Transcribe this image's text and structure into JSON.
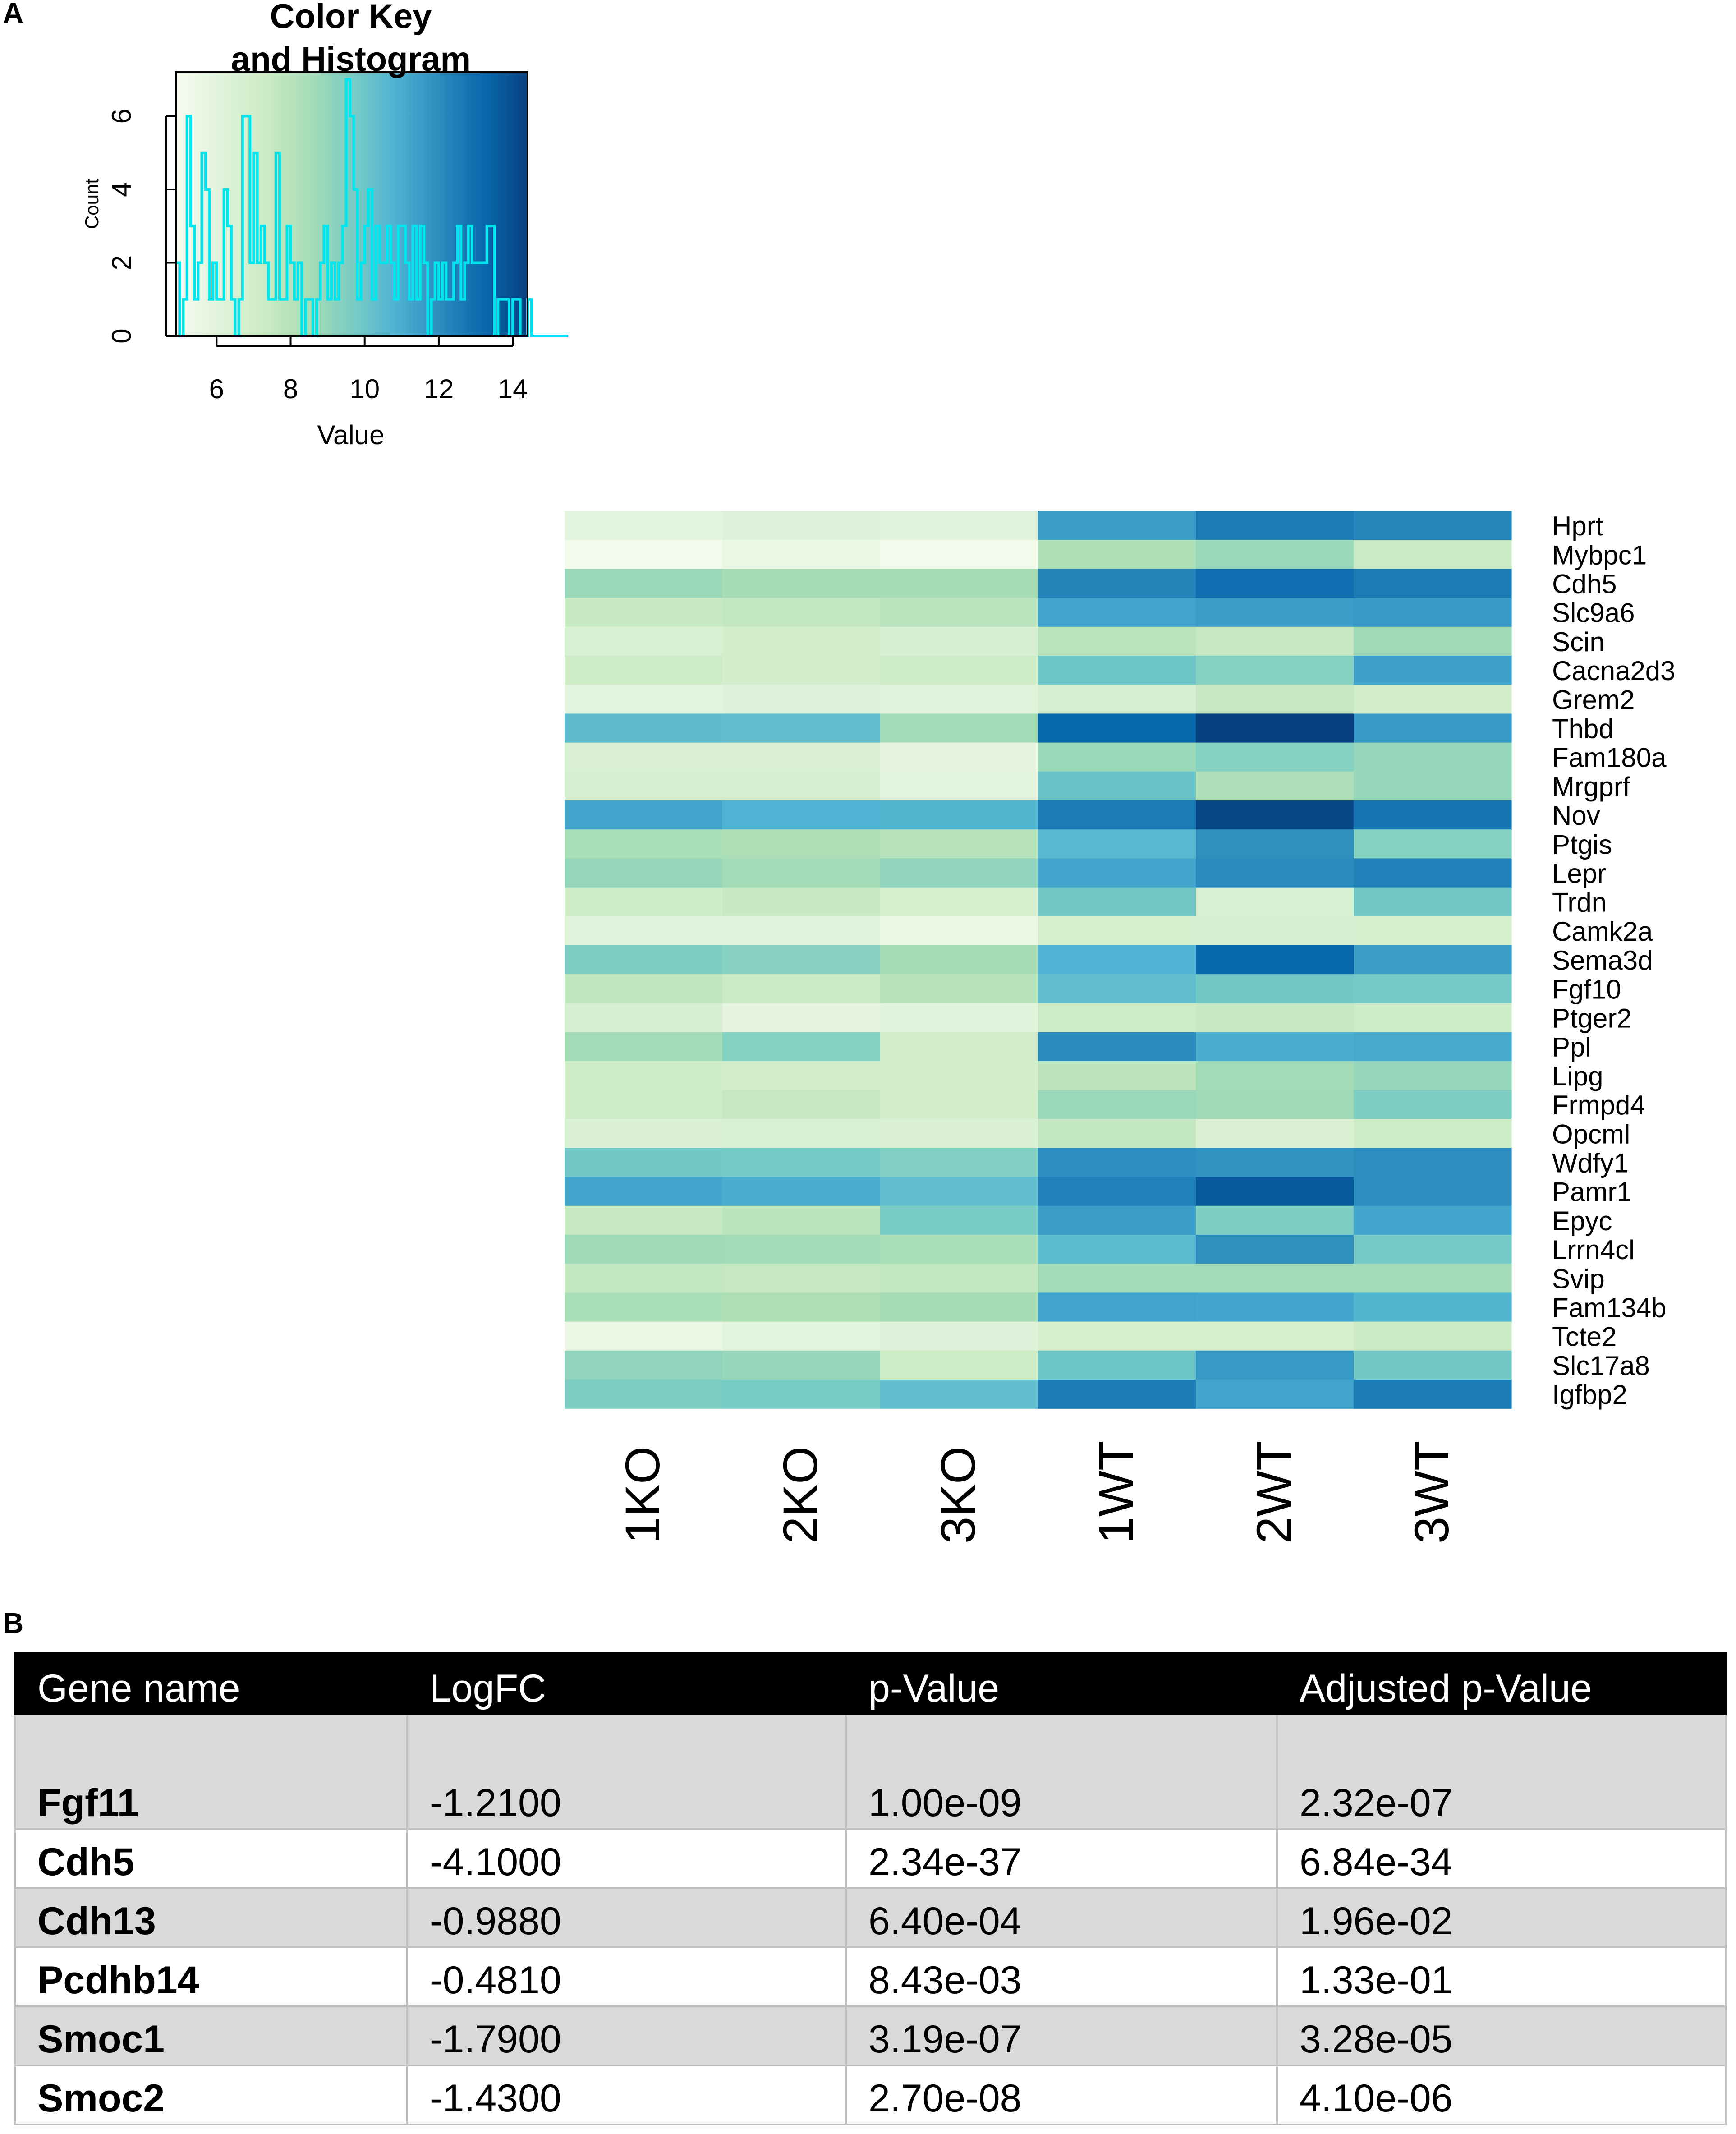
{
  "panels": {
    "a": "A",
    "b": "B"
  },
  "chart_data": [
    {
      "type": "histogram",
      "title": "Color Key\nand Histogram",
      "xlabel": "Value",
      "ylabel": "Count",
      "xlim": [
        4.9,
        14.4
      ],
      "ylim": [
        0,
        7.2
      ],
      "xticks": [
        6,
        8,
        10,
        12,
        14
      ],
      "yticks": [
        0,
        2,
        4,
        6
      ],
      "line_color": "#00e5ee",
      "colors": [
        "#f7fcf0",
        "#e0f3db",
        "#ccebc5",
        "#a8ddb5",
        "#7bccc4",
        "#4eb3d3",
        "#2b8cbe",
        "#0868ac",
        "#084081"
      ],
      "bins": {
        "start": 4.9,
        "width": 0.1,
        "counts": [
          2,
          0,
          1,
          6,
          3,
          1,
          2,
          5,
          4,
          1,
          2,
          1,
          1,
          4,
          3,
          1,
          0,
          1,
          6,
          6,
          2,
          5,
          2,
          3,
          2,
          1,
          1,
          5,
          1,
          1,
          3,
          2,
          1,
          2,
          0,
          1,
          1,
          0,
          1,
          2,
          3,
          1,
          2,
          1,
          2,
          3,
          7,
          6,
          4,
          1,
          2,
          3,
          4,
          1,
          3,
          2,
          2,
          3,
          2,
          1,
          3,
          3,
          2,
          1,
          3,
          1,
          3,
          2,
          0,
          1,
          2,
          1,
          2,
          1,
          1,
          2,
          3,
          1,
          2,
          3,
          2,
          2,
          2,
          2,
          3,
          3,
          0,
          1,
          1,
          1,
          0,
          1,
          1,
          0,
          0,
          1,
          0,
          0,
          0,
          0,
          0,
          0,
          0,
          0,
          0,
          0
        ]
      }
    },
    {
      "type": "heatmap",
      "columns": [
        "1KO",
        "2KO",
        "3KO",
        "1WT",
        "2WT",
        "3WT"
      ],
      "rows": [
        "Hprt",
        "Mybpc1",
        "Cdh5",
        "Slc9a6",
        "Scin",
        "Cacna2d3",
        "Grem2",
        "Thbd",
        "Fam180a",
        "Mrgprf",
        "Nov",
        "Ptgis",
        "Lepr",
        "Trdn",
        "Camk2a",
        "Sema3d",
        "Fgf10",
        "Ptger2",
        "Ppl",
        "Lipg",
        "Frmpd4",
        "Opcml",
        "Wdfy1",
        "Pamr1",
        "Epyc",
        "Lrrn4cl",
        "Svip",
        "Fam134b",
        "Tcte2",
        "Slc17a8",
        "Igfbp2"
      ],
      "scale_range": [
        4.9,
        14.4
      ],
      "values": [
        [
          6.0,
          6.2,
          6.1,
          11.5,
          12.6,
          12.2
        ],
        [
          5.2,
          5.5,
          5.2,
          8.3,
          8.8,
          7.3
        ],
        [
          8.8,
          8.5,
          8.5,
          12.3,
          13.0,
          12.6
        ],
        [
          7.4,
          7.6,
          7.9,
          11.3,
          11.5,
          11.6
        ],
        [
          6.6,
          6.9,
          6.7,
          7.9,
          7.5,
          8.7
        ],
        [
          7.2,
          6.9,
          7.1,
          10.0,
          9.4,
          11.4
        ],
        [
          6.0,
          6.2,
          6.1,
          6.7,
          7.5,
          7.0
        ],
        [
          10.4,
          10.3,
          8.6,
          13.2,
          14.4,
          11.6
        ],
        [
          6.5,
          6.5,
          5.8,
          8.8,
          9.4,
          8.9
        ],
        [
          6.7,
          6.7,
          6.0,
          10.1,
          8.2,
          8.9
        ],
        [
          11.2,
          10.8,
          10.7,
          12.6,
          14.2,
          12.8
        ],
        [
          8.4,
          8.3,
          8.0,
          10.6,
          11.9,
          9.4
        ],
        [
          9.0,
          8.6,
          9.1,
          11.2,
          12.1,
          12.4
        ],
        [
          7.1,
          7.4,
          6.8,
          9.9,
          6.6,
          9.9
        ],
        [
          6.1,
          6.1,
          5.6,
          6.8,
          6.7,
          6.8
        ],
        [
          9.6,
          9.3,
          8.5,
          10.8,
          13.2,
          11.5
        ],
        [
          7.7,
          7.3,
          8.0,
          10.3,
          9.9,
          9.8
        ],
        [
          6.7,
          5.9,
          6.1,
          7.2,
          7.5,
          7.1
        ],
        [
          8.6,
          9.4,
          7.0,
          12.1,
          11.0,
          11.1
        ],
        [
          7.1,
          7.0,
          7.0,
          7.8,
          8.6,
          8.9
        ],
        [
          7.2,
          7.5,
          7.0,
          8.8,
          8.7,
          9.6
        ],
        [
          6.5,
          6.6,
          6.5,
          7.6,
          6.5,
          7.2
        ],
        [
          9.9,
          9.8,
          9.5,
          12.0,
          11.8,
          12.0
        ],
        [
          11.2,
          11.0,
          10.3,
          12.4,
          13.6,
          12.0
        ],
        [
          7.5,
          7.9,
          9.7,
          11.5,
          9.6,
          11.2
        ],
        [
          8.7,
          8.6,
          8.4,
          10.5,
          11.9,
          9.8
        ],
        [
          7.6,
          7.5,
          7.6,
          8.6,
          8.6,
          8.6
        ],
        [
          8.4,
          8.3,
          8.5,
          11.3,
          11.2,
          10.7
        ],
        [
          5.6,
          6.0,
          6.2,
          6.8,
          6.8,
          7.3
        ],
        [
          9.1,
          8.9,
          7.2,
          10.0,
          11.6,
          9.9
        ],
        [
          9.6,
          9.7,
          10.3,
          12.5,
          11.3,
          12.5
        ]
      ]
    },
    {
      "type": "table",
      "headers": [
        "Gene name",
        "LogFC",
        "p-Value",
        "Adjusted p-Value"
      ],
      "rows": [
        [
          "Fgf11",
          "-1.2100",
          "1.00e-09",
          "2.32e-07"
        ],
        [
          "Cdh5",
          "-4.1000",
          "2.34e-37",
          "6.84e-34"
        ],
        [
          "Cdh13",
          "-0.9880",
          "6.40e-04",
          "1.96e-02"
        ],
        [
          "Pcdhb14",
          "-0.4810",
          "8.43e-03",
          "1.33e-01"
        ],
        [
          "Smoc1",
          "-1.7900",
          "3.19e-07",
          "3.28e-05"
        ],
        [
          "Smoc2",
          "-1.4300",
          "2.70e-08",
          "4.10e-06"
        ]
      ]
    }
  ]
}
